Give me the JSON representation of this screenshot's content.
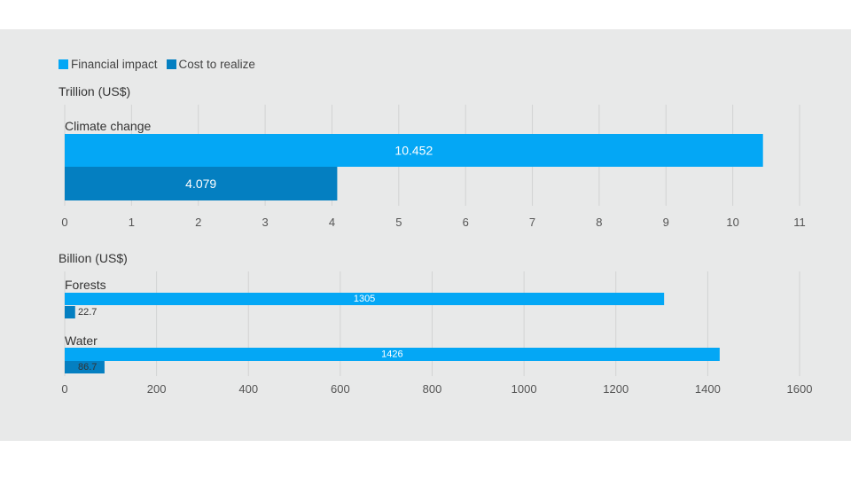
{
  "legend": {
    "items": [
      {
        "label": "Financial impact",
        "color": "#04a7f5"
      },
      {
        "label": "Cost to realize",
        "color": "#047fc1"
      }
    ]
  },
  "chart_data": [
    {
      "type": "bar",
      "orientation": "horizontal",
      "unit_label": "Trillion (US$)",
      "categories": [
        "Climate change"
      ],
      "series": [
        {
          "name": "Financial impact",
          "values": [
            10.452
          ],
          "labels": [
            "10.452"
          ],
          "color": "#04a7f5"
        },
        {
          "name": "Cost to realize",
          "values": [
            4.079
          ],
          "labels": [
            "4.079"
          ],
          "color": "#047fc1"
        }
      ],
      "xlim": [
        0,
        11
      ],
      "ticks": [
        0,
        1,
        2,
        3,
        4,
        5,
        6,
        7,
        8,
        9,
        10,
        11
      ],
      "grid": true
    },
    {
      "type": "bar",
      "orientation": "horizontal",
      "unit_label": "Billion (US$)",
      "categories": [
        "Forests",
        "Water"
      ],
      "series": [
        {
          "name": "Financial impact",
          "values": [
            1305,
            1426
          ],
          "labels": [
            "1305",
            "1426"
          ],
          "color": "#04a7f5"
        },
        {
          "name": "Cost to realize",
          "values": [
            22.7,
            86.7
          ],
          "labels": [
            "22.7",
            "86.7"
          ],
          "color": "#047fc1"
        }
      ],
      "xlim": [
        0,
        1600
      ],
      "ticks": [
        0,
        200,
        400,
        600,
        800,
        1000,
        1200,
        1400,
        1600
      ],
      "grid": true
    }
  ]
}
